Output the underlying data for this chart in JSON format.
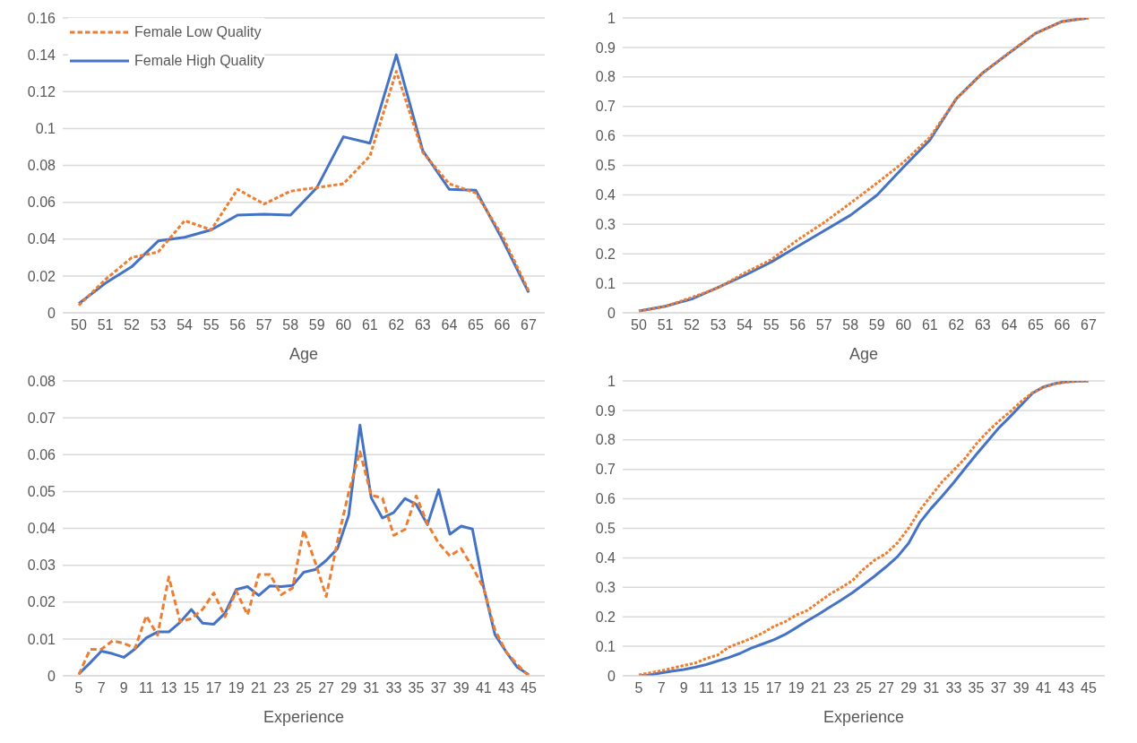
{
  "chart_data": [
    {
      "type": "line",
      "xlabel": "Age",
      "categories": [
        "50",
        "51",
        "52",
        "53",
        "54",
        "55",
        "56",
        "57",
        "58",
        "59",
        "60",
        "61",
        "62",
        "63",
        "64",
        "65",
        "66",
        "67"
      ],
      "ylim": [
        0,
        0.16
      ],
      "yticks": [
        0,
        0.02,
        0.04,
        0.06,
        0.08,
        0.1,
        0.12,
        0.14,
        0.16
      ],
      "grid": "y",
      "legend": "top left",
      "marker": "none",
      "series": [
        {
          "name": "Female Low Quality",
          "color": "#ed7d31",
          "line_style": "dashed",
          "values": [
            0.004,
            0.018,
            0.03,
            0.033,
            0.05,
            0.045,
            0.067,
            0.059,
            0.066,
            0.068,
            0.07,
            0.085,
            0.131,
            0.087,
            0.07,
            0.065,
            0.042,
            0.012
          ]
        },
        {
          "name": "Female High Quality",
          "color": "#4472c4",
          "line_style": "solid",
          "values": [
            0.005,
            0.016,
            0.025,
            0.039,
            0.041,
            0.045,
            0.053,
            0.0535,
            0.053,
            0.068,
            0.0955,
            0.092,
            0.14,
            0.088,
            0.067,
            0.0665,
            0.04,
            0.011
          ]
        }
      ]
    },
    {
      "type": "line",
      "xlabel": "Age",
      "categories": [
        "50",
        "51",
        "52",
        "53",
        "54",
        "55",
        "56",
        "57",
        "58",
        "59",
        "60",
        "61",
        "62",
        "63",
        "64",
        "65",
        "66",
        "67"
      ],
      "ylim": [
        0,
        1
      ],
      "yticks": [
        0,
        0.1,
        0.2,
        0.3,
        0.4,
        0.5,
        0.6,
        0.7,
        0.8,
        0.9,
        1
      ],
      "grid": "y",
      "marker": "none",
      "series": [
        {
          "color": "#ed7d31",
          "line_style": "dashed",
          "values": [
            0.005,
            0.022,
            0.052,
            0.085,
            0.135,
            0.18,
            0.247,
            0.306,
            0.372,
            0.44,
            0.51,
            0.595,
            0.726,
            0.813,
            0.883,
            0.948,
            0.988,
            1.0
          ]
        },
        {
          "color": "#4472c4",
          "line_style": "solid",
          "values": [
            0.006,
            0.022,
            0.047,
            0.086,
            0.127,
            0.172,
            0.225,
            0.278,
            0.331,
            0.399,
            0.494,
            0.586,
            0.726,
            0.814,
            0.881,
            0.948,
            0.988,
            1.0
          ]
        }
      ]
    },
    {
      "type": "line",
      "xlabel": "Experience",
      "categories": [
        "5",
        null,
        "7",
        null,
        "9",
        null,
        "11",
        null,
        "13",
        null,
        "15",
        null,
        "17",
        null,
        "19",
        null,
        "21",
        null,
        "23",
        null,
        "25",
        null,
        "27",
        null,
        "29",
        null,
        "31",
        null,
        "33",
        null,
        "35",
        null,
        "37",
        null,
        "39",
        null,
        "41",
        null,
        "43",
        null,
        "45"
      ],
      "ylim": [
        0,
        0.08
      ],
      "yticks": [
        0,
        0.01,
        0.02,
        0.03,
        0.04,
        0.05,
        0.06,
        0.07,
        0.08
      ],
      "grid": "y",
      "marker": "none",
      "series": [
        {
          "color": "#ed7d31",
          "line_style": "dashed",
          "values": [
            0.0003,
            0.0072,
            0.0072,
            0.0095,
            0.0088,
            0.0075,
            0.0163,
            0.011,
            0.0268,
            0.0147,
            0.0155,
            0.018,
            0.0225,
            0.016,
            0.023,
            0.0165,
            0.0275,
            0.0275,
            0.022,
            0.0238,
            0.0395,
            0.031,
            0.0215,
            0.0365,
            0.0498,
            0.0608,
            0.049,
            0.0482,
            0.0381,
            0.0397,
            0.0488,
            0.0412,
            0.036,
            0.0325,
            0.0345,
            0.0295,
            0.0238,
            0.0125,
            0.0065,
            0.003,
            0.0
          ]
        },
        {
          "color": "#4472c4",
          "line_style": "solid",
          "values": [
            0.0005,
            0.0035,
            0.0067,
            0.006,
            0.005,
            0.0073,
            0.0103,
            0.0119,
            0.0119,
            0.0145,
            0.018,
            0.0143,
            0.014,
            0.017,
            0.0234,
            0.0242,
            0.0218,
            0.0244,
            0.0242,
            0.0245,
            0.0281,
            0.0288,
            0.0313,
            0.0345,
            0.0435,
            0.068,
            0.0483,
            0.0428,
            0.0443,
            0.0481,
            0.0465,
            0.041,
            0.0505,
            0.0384,
            0.0406,
            0.0398,
            0.024,
            0.0112,
            0.0065,
            0.0023,
            0.0003
          ]
        }
      ]
    },
    {
      "type": "line",
      "xlabel": "Experience",
      "categories": [
        "5",
        null,
        "7",
        null,
        "9",
        null,
        "11",
        null,
        "13",
        null,
        "15",
        null,
        "17",
        null,
        "19",
        null,
        "21",
        null,
        "23",
        null,
        "25",
        null,
        "27",
        null,
        "29",
        null,
        "31",
        null,
        "33",
        null,
        "35",
        null,
        "37",
        null,
        "39",
        null,
        "41",
        null,
        "43",
        null,
        "45"
      ],
      "ylim": [
        0,
        1
      ],
      "yticks": [
        0,
        0.1,
        0.2,
        0.3,
        0.4,
        0.5,
        0.6,
        0.7,
        0.8,
        0.9,
        1
      ],
      "grid": "y",
      "marker": "none",
      "series": [
        {
          "color": "#ed7d31",
          "line_style": "dashed",
          "values": [
            0.003,
            0.01,
            0.017,
            0.026,
            0.035,
            0.043,
            0.059,
            0.07,
            0.097,
            0.112,
            0.127,
            0.145,
            0.167,
            0.183,
            0.206,
            0.222,
            0.25,
            0.277,
            0.299,
            0.323,
            0.362,
            0.393,
            0.415,
            0.451,
            0.501,
            0.562,
            0.611,
            0.659,
            0.697,
            0.737,
            0.786,
            0.827,
            0.863,
            0.895,
            0.93,
            0.96,
            0.978,
            0.99,
            0.996,
            0.999,
            1.0
          ]
        },
        {
          "color": "#4472c4",
          "line_style": "solid",
          "values": [
            0.0,
            0.003,
            0.01,
            0.016,
            0.021,
            0.029,
            0.038,
            0.05,
            0.062,
            0.076,
            0.094,
            0.108,
            0.122,
            0.14,
            0.163,
            0.187,
            0.209,
            0.233,
            0.257,
            0.282,
            0.31,
            0.339,
            0.37,
            0.404,
            0.45,
            0.52,
            0.568,
            0.61,
            0.655,
            0.703,
            0.75,
            0.795,
            0.84,
            0.878,
            0.918,
            0.958,
            0.98,
            0.991,
            0.997,
            0.999,
            1.0
          ]
        }
      ]
    }
  ]
}
